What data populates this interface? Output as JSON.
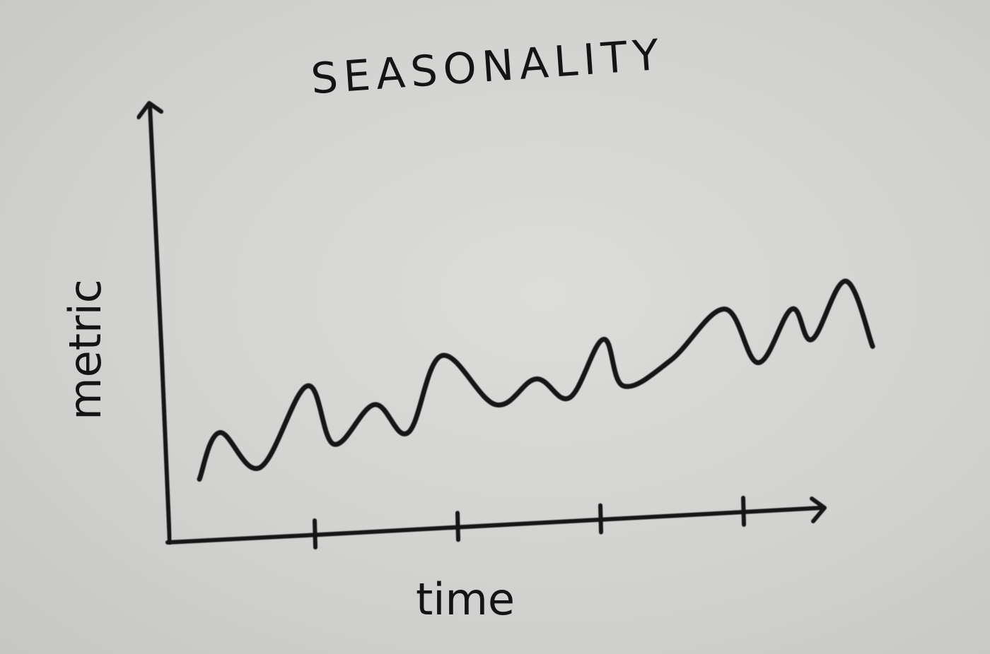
{
  "chart_data": {
    "type": "line",
    "title": "SEASONALITY",
    "xlabel": "time",
    "ylabel": "metric",
    "x_tick_count": 4,
    "grid": false,
    "legend": "none",
    "ink_color": "#141414",
    "paper_color": "#d3d3d1",
    "x": [
      0,
      0.03,
      0.09,
      0.16,
      0.2,
      0.26,
      0.31,
      0.36,
      0.44,
      0.5,
      0.55,
      0.6,
      0.63,
      0.7,
      0.78,
      0.83,
      0.88,
      0.91,
      0.96,
      1.0
    ],
    "series": [
      {
        "values": [
          0.05,
          0.25,
          0.1,
          0.45,
          0.2,
          0.37,
          0.25,
          0.58,
          0.37,
          0.48,
          0.4,
          0.65,
          0.45,
          0.56,
          0.78,
          0.55,
          0.78,
          0.65,
          0.9,
          0.62
        ]
      }
    ]
  }
}
